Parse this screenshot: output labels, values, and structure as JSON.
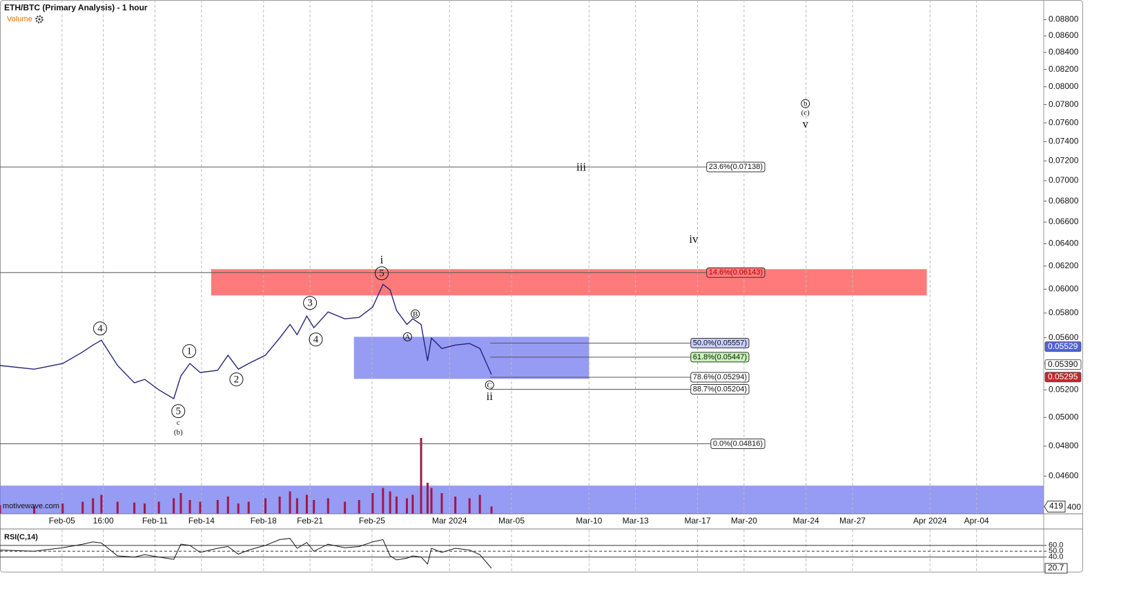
{
  "chart_data": {
    "type": "line",
    "title": "ETH/BTC (Primary Analysis) - 1 hour",
    "watermark": "motivewave.com",
    "log_scale": true,
    "grid": true,
    "xlim": [
      "2024-02-01",
      "2024-04-08T08:00"
    ],
    "ylim": [
      0.0436,
      0.0905
    ],
    "xticks": [
      {
        "value": "2024-02-05",
        "label": "Feb-05"
      },
      {
        "value": "2024-02-07T16:00",
        "label": "16:00"
      },
      {
        "value": "2024-02-11",
        "label": "Feb-11"
      },
      {
        "value": "2024-02-14",
        "label": "Feb-14"
      },
      {
        "value": "2024-02-18",
        "label": "Feb-18"
      },
      {
        "value": "2024-02-21",
        "label": "Feb-21"
      },
      {
        "value": "2024-02-25",
        "label": "Feb-25"
      },
      {
        "value": "2024-03-01",
        "label": "Mar 2024"
      },
      {
        "value": "2024-03-05",
        "label": "Mar-05"
      },
      {
        "value": "2024-03-10",
        "label": "Mar-10"
      },
      {
        "value": "2024-03-13",
        "label": "Mar-13"
      },
      {
        "value": "2024-03-17",
        "label": "Mar-17"
      },
      {
        "value": "2024-03-20",
        "label": "Mar-20"
      },
      {
        "value": "2024-03-24",
        "label": "Mar-24"
      },
      {
        "value": "2024-03-27",
        "label": "Mar-27"
      },
      {
        "value": "2024-04-01",
        "label": "Apr 2024"
      },
      {
        "value": "2024-04-04",
        "label": "Apr-04"
      }
    ],
    "yticks": [
      {
        "value": 0.046,
        "label": "0.04600"
      },
      {
        "value": 0.048,
        "label": "0.04800"
      },
      {
        "value": 0.05,
        "label": "0.05000"
      },
      {
        "value": 0.052,
        "label": "0.05200"
      },
      {
        "value": 0.054,
        "label": "0.05400"
      },
      {
        "value": 0.056,
        "label": "0.05600"
      },
      {
        "value": 0.058,
        "label": "0.05800"
      },
      {
        "value": 0.06,
        "label": "0.06000"
      },
      {
        "value": 0.062,
        "label": "0.06200"
      },
      {
        "value": 0.064,
        "label": "0.06400"
      },
      {
        "value": 0.066,
        "label": "0.06600"
      },
      {
        "value": 0.068,
        "label": "0.06800"
      },
      {
        "value": 0.07,
        "label": "0.07000"
      },
      {
        "value": 0.072,
        "label": "0.07200"
      },
      {
        "value": 0.074,
        "label": "0.07400"
      },
      {
        "value": 0.076,
        "label": "0.07600"
      },
      {
        "value": 0.078,
        "label": "0.07800"
      },
      {
        "value": 0.08,
        "label": "0.08000"
      },
      {
        "value": 0.082,
        "label": "0.08200"
      },
      {
        "value": 0.084,
        "label": "0.08400"
      },
      {
        "value": 0.086,
        "label": "0.08600"
      },
      {
        "value": 0.088,
        "label": "0.08800"
      }
    ],
    "x": [
      "2024-02-01T00:00",
      "2024-02-03T05:00",
      "2024-02-05T01:00",
      "2024-02-06T08:00",
      "2024-02-07T00:00",
      "2024-02-07T13:00",
      "2024-02-08T14:00",
      "2024-02-09T16:00",
      "2024-02-10T08:00",
      "2024-02-11T06:00",
      "2024-02-12T05:00",
      "2024-02-12T16:00",
      "2024-02-13T06:00",
      "2024-02-13T22:00",
      "2024-02-15T01:00",
      "2024-02-15T17:00",
      "2024-02-16T09:00",
      "2024-02-17T01:00",
      "2024-02-18T03:00",
      "2024-02-19T01:00",
      "2024-02-19T17:00",
      "2024-02-20T04:00",
      "2024-02-20T19:00",
      "2024-02-21T06:00",
      "2024-02-22T04:00",
      "2024-02-23T06:00",
      "2024-02-24T04:00",
      "2024-02-25T01:00",
      "2024-02-25T17:00",
      "2024-02-26T04:00",
      "2024-02-26T14:00",
      "2024-02-27T06:00",
      "2024-02-27T15:00",
      "2024-02-28T04:00",
      "2024-02-28T14:00",
      "2024-02-28T20:00",
      "2024-02-29T12:00",
      "2024-03-01T09:00",
      "2024-03-02T07:00",
      "2024-03-02T23:00",
      "2024-03-03T17:00"
    ],
    "series": [
      {
        "name": "ETH/BTC",
        "color": "#23237a",
        "values": [
          0.05383,
          0.05355,
          0.05398,
          0.05488,
          0.05542,
          0.0558,
          0.05383,
          0.05252,
          0.05278,
          0.052,
          0.05135,
          0.05304,
          0.05398,
          0.0533,
          0.05346,
          0.05462,
          0.05355,
          0.05398,
          0.05462,
          0.05597,
          0.05707,
          0.05624,
          0.05775,
          0.0568,
          0.05809,
          0.05752,
          0.05764,
          0.05849,
          0.06041,
          0.05994,
          0.05821,
          0.05707,
          0.05752,
          0.05707,
          0.05419,
          0.05597,
          0.05515,
          0.05542,
          0.05554,
          0.05515,
          0.05314
        ]
      }
    ],
    "volume": {
      "name": "Volume",
      "color": "#a01848",
      "ylim": [
        0,
        4800
      ],
      "yticks": [
        400
      ],
      "values": [
        500,
        450,
        600,
        700,
        900,
        1100,
        700,
        650,
        600,
        700,
        900,
        1200,
        800,
        700,
        800,
        1000,
        600,
        700,
        900,
        1000,
        1300,
        900,
        1100,
        800,
        900,
        700,
        800,
        1200,
        1500,
        1300,
        1000,
        900,
        1100,
        4400,
        1800,
        1500,
        1200,
        1000,
        900,
        1100,
        419
      ]
    },
    "rsi": {
      "name": "RSI(C,14)",
      "color": "#111111",
      "ylim": [
        16,
        87
      ],
      "yticks": [
        {
          "value": 60,
          "label": "60.0"
        },
        {
          "value": 50,
          "label": "50.0"
        },
        {
          "value": 40,
          "label": "40.0"
        }
      ],
      "values": [
        52,
        50,
        56,
        62,
        66,
        64,
        42,
        40,
        44,
        40,
        36,
        62,
        60,
        48,
        55,
        58,
        45,
        52,
        60,
        70,
        72,
        55,
        65,
        50,
        62,
        56,
        58,
        66,
        70,
        42,
        35,
        38,
        42,
        40,
        28,
        55,
        48,
        55,
        52,
        44,
        20.7
      ]
    },
    "zones": [
      {
        "x": [
          "2024-02-14T15:00",
          "2024-03-31T19:00"
        ],
        "y": [
          0.05947,
          0.06173
        ],
        "color": "#ff5a5a"
      },
      {
        "x": [
          "2024-02-23T20:00",
          "2024-03-10T00:00"
        ],
        "y": [
          0.05282,
          0.05607
        ],
        "color": "#7c82f0"
      },
      {
        "x": [
          "2024-02-01",
          "2024-04-08T08:00"
        ],
        "y": [
          0.0436,
          0.04538
        ],
        "color": "#7c82f0"
      }
    ],
    "fib_levels": [
      {
        "label": "23.6%(0.07138)",
        "value": 0.07138,
        "start": "2024-02-01",
        "box_color": "#ffffff",
        "text_color": "#111111"
      },
      {
        "label": "14.6%(0.06143)",
        "value": 0.06143,
        "start": "2024-02-01",
        "box_color": "#ff7a7a",
        "text_color": "#b00000"
      },
      {
        "label": "50.0%(0.05557)",
        "value": 0.05557,
        "start": "2024-03-03T15:00",
        "box_color": "#c9cfff",
        "text_color": "#111111"
      },
      {
        "label": "61.8%(0.05447)",
        "value": 0.05447,
        "start": "2024-03-03T15:00",
        "box_color": "#c6f3b6",
        "text_color": "#111111"
      },
      {
        "label": "78.6%(0.05294)",
        "value": 0.05294,
        "start": "2024-03-03T15:00",
        "box_color": "#ffffff",
        "text_color": "#111111"
      },
      {
        "label": "88.7%(0.05204)",
        "value": 0.05204,
        "start": "2024-03-03T15:00",
        "box_color": "#ffffff",
        "text_color": "#111111"
      },
      {
        "label": "0.0%(0.04816)",
        "value": 0.04816,
        "start": "2024-02-01",
        "box_color": "#ffffff",
        "text_color": "#111111"
      }
    ],
    "price_markers": [
      {
        "value": 0.05529,
        "label": "0.05529",
        "color": "#4f63d8",
        "text_color": "#ffffff"
      },
      {
        "value": 0.0539,
        "label": "0.05390",
        "color": "#ffffff",
        "text_color": "#111111"
      },
      {
        "value": 0.05295,
        "label": "0.05295",
        "color": "#c0282d",
        "text_color": "#ffffff"
      }
    ],
    "annotations": [
      {
        "text": "4",
        "x": "2024-02-07T11:00",
        "y": 0.05674,
        "circled": true,
        "size": "large"
      },
      {
        "text": "1",
        "x": "2024-02-13T05:00",
        "y": 0.05494,
        "circled": true,
        "size": "large"
      },
      {
        "text": "2",
        "x": "2024-02-16T06:00",
        "y": 0.05278,
        "circled": true,
        "size": "large"
      },
      {
        "text": "3",
        "x": "2024-02-21T00:00",
        "y": 0.05884,
        "circled": true,
        "size": "large"
      },
      {
        "text": "4",
        "x": "2024-02-21T09:00",
        "y": 0.05586,
        "circled": true,
        "size": "large"
      },
      {
        "text": "5",
        "x": "2024-02-12T12:00",
        "y": 0.05045,
        "circled": true,
        "size": "large"
      },
      {
        "text": "c",
        "x": "2024-02-12T12:00",
        "y": 0.04966,
        "circled": false,
        "size": "small"
      },
      {
        "text": "(b)",
        "x": "2024-02-12T12:00",
        "y": 0.04898,
        "circled": false,
        "size": "small"
      },
      {
        "text": "5",
        "x": "2024-02-25T15:00",
        "y": 0.06137,
        "circled": true,
        "size": "large"
      },
      {
        "text": "i",
        "x": "2024-02-25T15:00",
        "y": 0.06252,
        "circled": false,
        "size": "large"
      },
      {
        "text": "A",
        "x": "2024-02-27T07:00",
        "y": 0.05607,
        "circled": true,
        "size": "small"
      },
      {
        "text": "B",
        "x": "2024-02-27T19:00",
        "y": 0.05792,
        "circled": true,
        "size": "small"
      },
      {
        "text": "C",
        "x": "2024-03-03T14:00",
        "y": 0.05236,
        "circled": true,
        "size": "small"
      },
      {
        "text": "ii",
        "x": "2024-03-03T14:00",
        "y": 0.05149,
        "circled": false,
        "size": "large"
      },
      {
        "text": "iii",
        "x": "2024-03-09T12:00",
        "y": 0.07136,
        "circled": false,
        "size": "large"
      },
      {
        "text": "iv",
        "x": "2024-03-16T18:00",
        "y": 0.06439,
        "circled": false,
        "size": "large"
      },
      {
        "text": "b",
        "x": "2024-03-23T23:00",
        "y": 0.07811,
        "circled": true,
        "size": "small"
      },
      {
        "text": "(c)",
        "x": "2024-03-23T23:00",
        "y": 0.07712,
        "circled": false,
        "size": "small"
      },
      {
        "text": "v",
        "x": "2024-03-23T23:00",
        "y": 0.07584,
        "circled": false,
        "size": "large"
      }
    ]
  }
}
